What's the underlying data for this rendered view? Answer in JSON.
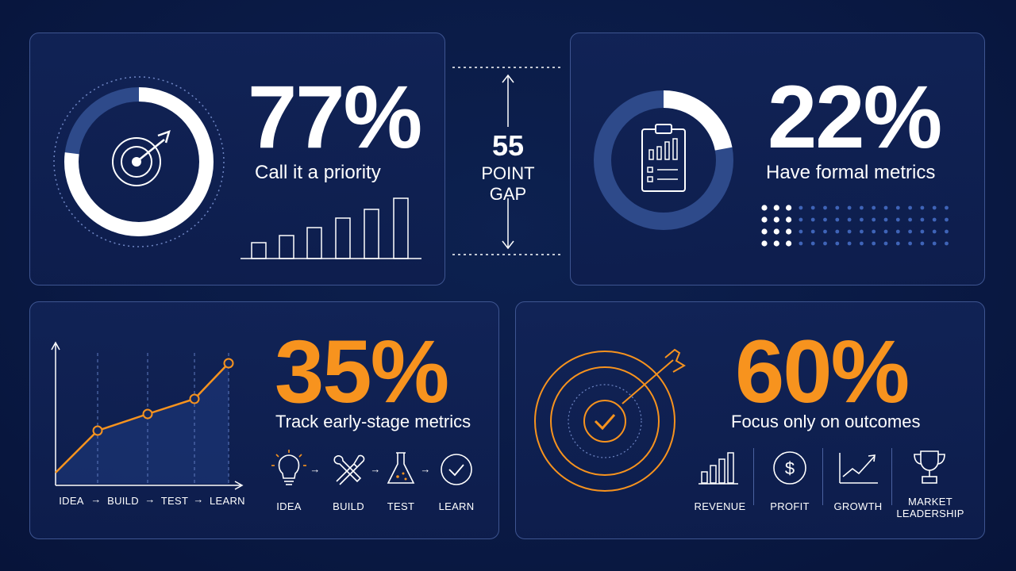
{
  "cards": {
    "priority": {
      "percent": "77%",
      "caption": "Call it a priority",
      "ring_fraction": 0.77
    },
    "formal": {
      "percent": "22%",
      "caption": "Have formal metrics",
      "ring_fraction": 0.22
    },
    "early": {
      "percent": "35%",
      "caption": "Track early-stage metrics",
      "chart_labels": [
        "IDEA",
        "BUILD",
        "TEST",
        "LEARN"
      ],
      "steps": [
        {
          "icon": "lightbulb-icon",
          "label": "IDEA"
        },
        {
          "icon": "tools-icon",
          "label": "BUILD"
        },
        {
          "icon": "flask-icon",
          "label": "TEST"
        },
        {
          "icon": "checkmark-circle-icon",
          "label": "LEARN"
        }
      ]
    },
    "outcomes": {
      "percent": "60%",
      "caption": "Focus only on outcomes",
      "items": [
        {
          "icon": "bar-chart-icon",
          "label": "REVENUE"
        },
        {
          "icon": "dollar-coin-icon",
          "label": "PROFIT"
        },
        {
          "icon": "growth-chart-icon",
          "label": "GROWTH"
        },
        {
          "icon": "trophy-icon",
          "label": "MARKET",
          "label2": "LEADERSHIP"
        }
      ]
    }
  },
  "gap": {
    "number": "55",
    "line1": "POINT",
    "line2": "GAP"
  },
  "colors": {
    "orange": "#f7931e",
    "ring_dark": "#2e4a8a",
    "border": "#3e5591"
  }
}
